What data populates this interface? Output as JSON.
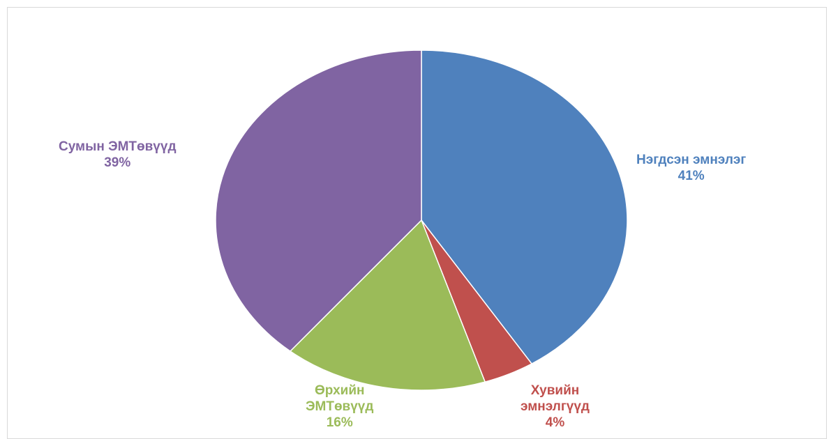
{
  "chart_data": {
    "type": "pie",
    "slices": [
      {
        "name": "Нэгдсэн эмнэлэг",
        "name_lines": [
          "Нэгдсэн эмнэлэг"
        ],
        "value": 41,
        "label": "41%",
        "color": "#4f81bd"
      },
      {
        "name": "Хувийн эмнэлгүүд",
        "name_lines": [
          "Хувийн",
          "эмнэлгүүд"
        ],
        "value": 4,
        "label": "4%",
        "color": "#c0504d"
      },
      {
        "name": "Өрхийн ЭМТөвүүд",
        "name_lines": [
          "Өрхийн",
          "ЭМТөвүүд"
        ],
        "value": 16,
        "label": "16%",
        "color": "#9bbb59"
      },
      {
        "name": "Сумын ЭМТөвүүд",
        "name_lines": [
          "Сумын ЭМТөвүүд"
        ],
        "value": 39,
        "label": "39%",
        "color": "#8064a2"
      }
    ],
    "start": "12 o'clock",
    "direction": "clockwise",
    "legend": "none",
    "data_labels": "outside"
  }
}
